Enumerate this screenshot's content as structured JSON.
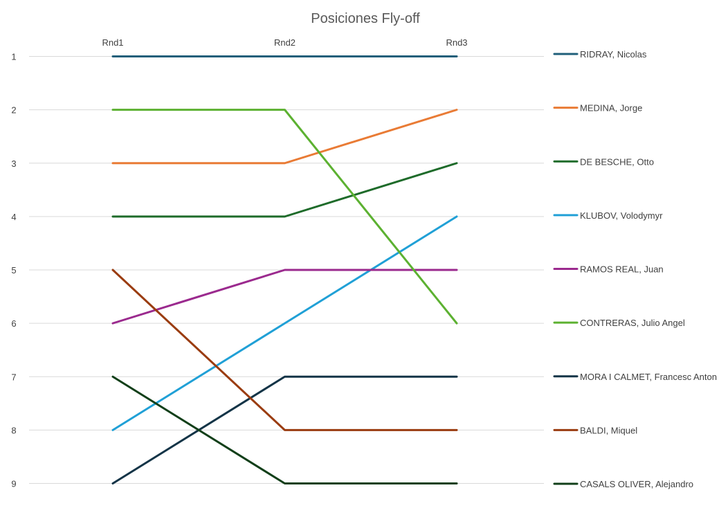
{
  "chart_data": {
    "type": "line",
    "title": "Posiciones Fly-off",
    "xlabel": "",
    "ylabel": "",
    "categories": [
      "Rnd1",
      "Rnd2",
      "Rnd3"
    ],
    "y_reversed": true,
    "ylim": [
      1,
      9
    ],
    "y_ticks": [
      "1",
      "2",
      "3",
      "4",
      "5",
      "6",
      "7",
      "8",
      "9"
    ],
    "grid": true,
    "legend_position": "right",
    "series": [
      {
        "name": "RIDRAY, Nicolas",
        "color": "#1f5f7a",
        "values": [
          1,
          1,
          1
        ]
      },
      {
        "name": "MEDINA, Jorge",
        "color": "#e97b35",
        "values": [
          3,
          3,
          2
        ]
      },
      {
        "name": "DE BESCHE, Otto",
        "color": "#1e6b2a",
        "values": [
          4,
          4,
          3
        ]
      },
      {
        "name": "KLUBOV, Volodymyr",
        "color": "#20a0d6",
        "values": [
          8,
          6,
          4
        ]
      },
      {
        "name": "RAMOS REAL, Juan",
        "color": "#9b2a8e",
        "values": [
          6,
          5,
          5
        ]
      },
      {
        "name": "CONTRERAS, Julio Angel",
        "color": "#5cb131",
        "values": [
          2,
          2,
          6
        ]
      },
      {
        "name": "MORA I CALMET, Francesc Anton",
        "color": "#133447",
        "values": [
          9,
          7,
          7
        ]
      },
      {
        "name": "BALDI, Miquel",
        "color": "#9a3c10",
        "values": [
          5,
          8,
          8
        ]
      },
      {
        "name": "CASALS OLIVER, Alejandro",
        "color": "#113f19",
        "values": [
          7,
          9,
          9
        ]
      }
    ]
  }
}
